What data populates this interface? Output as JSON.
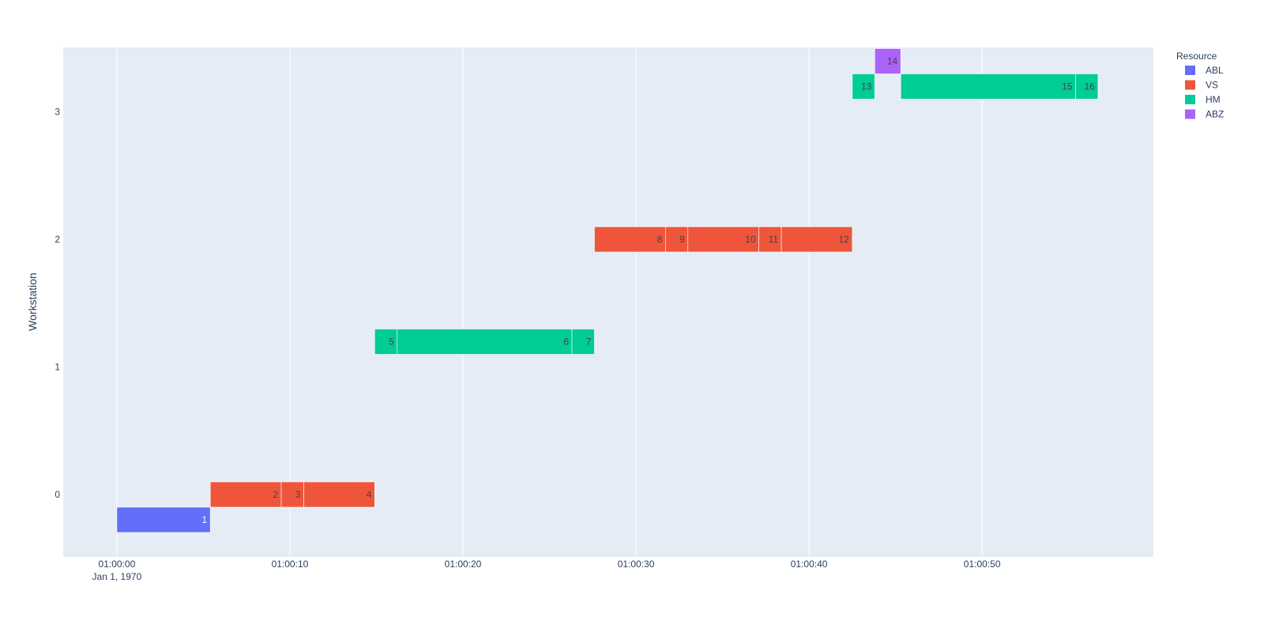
{
  "chart_data": {
    "type": "bar",
    "orientation": "horizontal-timeline",
    "ylabel": "Workstation",
    "x_tick_labels": [
      "01:00:00",
      "01:00:10",
      "01:00:20",
      "01:00:30",
      "01:00:40",
      "01:00:50"
    ],
    "x_tick_sublabel": "Jan 1, 1970",
    "x_ticks_seconds": [
      0,
      10,
      20,
      30,
      40,
      50
    ],
    "xlim_seconds": [
      -3.1,
      59.9
    ],
    "y_categories": [
      "0",
      "1",
      "2",
      "3"
    ],
    "grid": true,
    "legend_title": "Resource",
    "legend_position": "top-right",
    "series": [
      {
        "name": "ABL",
        "color": "#636efa",
        "text_color": "#ffffff"
      },
      {
        "name": "VS",
        "color": "#ef553b",
        "text_color": "#444444"
      },
      {
        "name": "HM",
        "color": "#00cc96",
        "text_color": "#444444"
      },
      {
        "name": "ABZ",
        "color": "#ab63fa",
        "text_color": "#444444"
      }
    ],
    "tasks": [
      {
        "label": "1",
        "workstation": 0,
        "resource": "ABL",
        "start": 0.0,
        "end": 5.4
      },
      {
        "label": "2",
        "workstation": 0,
        "resource": "VS",
        "start": 5.4,
        "end": 9.5
      },
      {
        "label": "3",
        "workstation": 0,
        "resource": "VS",
        "start": 9.5,
        "end": 10.8
      },
      {
        "label": "4",
        "workstation": 0,
        "resource": "VS",
        "start": 10.8,
        "end": 14.9
      },
      {
        "label": "5",
        "workstation": 1,
        "resource": "HM",
        "start": 14.9,
        "end": 16.2
      },
      {
        "label": "6",
        "workstation": 1,
        "resource": "HM",
        "start": 16.2,
        "end": 26.3
      },
      {
        "label": "7",
        "workstation": 1,
        "resource": "HM",
        "start": 26.3,
        "end": 27.6
      },
      {
        "label": "8",
        "workstation": 2,
        "resource": "VS",
        "start": 27.6,
        "end": 31.7
      },
      {
        "label": "9",
        "workstation": 2,
        "resource": "VS",
        "start": 31.7,
        "end": 33.0
      },
      {
        "label": "10",
        "workstation": 2,
        "resource": "VS",
        "start": 33.0,
        "end": 37.1
      },
      {
        "label": "11",
        "workstation": 2,
        "resource": "VS",
        "start": 37.1,
        "end": 38.4
      },
      {
        "label": "12",
        "workstation": 2,
        "resource": "VS",
        "start": 38.4,
        "end": 42.5
      },
      {
        "label": "13",
        "workstation": 3,
        "resource": "HM",
        "start": 42.5,
        "end": 43.8
      },
      {
        "label": "14",
        "workstation": 3,
        "resource": "ABZ",
        "start": 43.8,
        "end": 45.3
      },
      {
        "label": "15",
        "workstation": 3,
        "resource": "HM",
        "start": 45.3,
        "end": 55.4
      },
      {
        "label": "16",
        "workstation": 3,
        "resource": "HM",
        "start": 55.4,
        "end": 56.7
      }
    ]
  }
}
